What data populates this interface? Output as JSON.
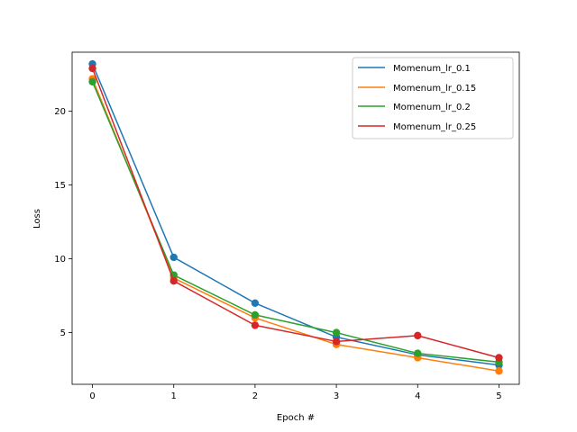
{
  "chart_data": {
    "type": "line",
    "title": "",
    "xlabel": "Epoch #",
    "ylabel": "Loss",
    "x": [
      0,
      1,
      2,
      3,
      4,
      5
    ],
    "xlim": [
      -0.25,
      5.25
    ],
    "ylim": [
      1.5,
      24.0
    ],
    "xticks": [
      "0",
      "1",
      "2",
      "3",
      "4",
      "5"
    ],
    "yticks": [
      "5",
      "10",
      "15",
      "20"
    ],
    "grid": false,
    "legend_position": "top-right",
    "markers": true,
    "series": [
      {
        "name": "Momenum_lr_0.1",
        "color": "#1f77b4",
        "values": [
          23.2,
          10.1,
          7.0,
          4.7,
          3.5,
          2.8
        ]
      },
      {
        "name": "Momenum_lr_0.15",
        "color": "#ff7f0e",
        "values": [
          22.2,
          8.7,
          6.0,
          4.2,
          3.3,
          2.4
        ]
      },
      {
        "name": "Momenum_lr_0.2",
        "color": "#2ca02c",
        "values": [
          22.0,
          8.9,
          6.2,
          5.0,
          3.6,
          3.0
        ]
      },
      {
        "name": "Momenum_lr_0.25",
        "color": "#d62728",
        "values": [
          22.9,
          8.5,
          5.5,
          4.4,
          4.8,
          3.3
        ]
      }
    ]
  }
}
